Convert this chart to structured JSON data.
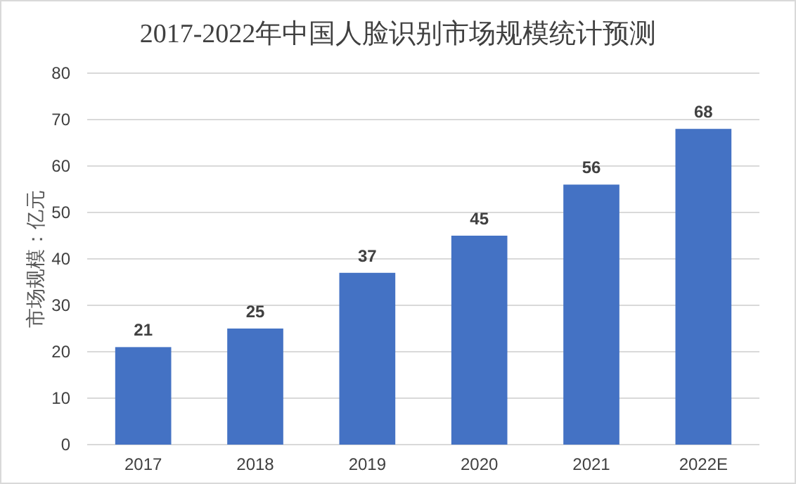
{
  "chart_data": {
    "type": "bar",
    "title": "2017-2022年中国人脸识别市场规模统计预测",
    "ylabel": "市场规模：亿元",
    "categories": [
      "2017",
      "2018",
      "2019",
      "2020",
      "2021",
      "2022E"
    ],
    "values": [
      21,
      25,
      37,
      45,
      56,
      68
    ],
    "color": "#4472c4",
    "ylim": [
      0,
      80
    ],
    "yticks": [
      0,
      10,
      20,
      30,
      40,
      50,
      60,
      70,
      80
    ],
    "grid": "y",
    "data_labels": true
  }
}
